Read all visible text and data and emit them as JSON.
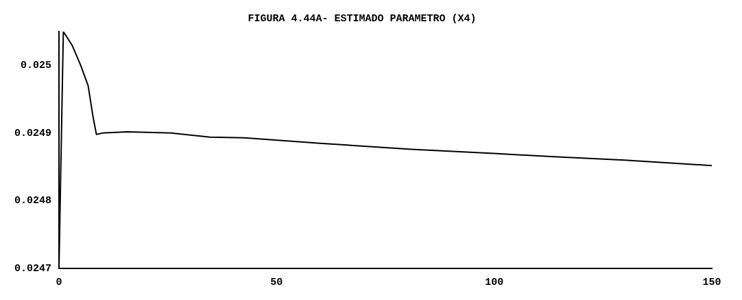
{
  "chart_data": {
    "type": "line",
    "title": "FIGURA 4.44A- ESTIMADO PARAMETRO (X4)",
    "x": [
      0,
      1,
      3,
      5,
      6.7,
      7.8,
      8.6,
      10,
      15.7,
      26,
      34.7,
      42.6,
      60,
      81,
      100,
      113.6,
      130,
      150
    ],
    "series": [
      {
        "color": "#000000",
        "values": [
          0.0247,
          0.02505,
          0.02503,
          0.025,
          0.02497,
          0.024925,
          0.024898,
          0.0249,
          0.024902,
          0.0249,
          0.024894,
          0.024893,
          0.024885,
          0.024876,
          0.02487,
          0.024865,
          0.02486,
          0.024852
        ]
      }
    ],
    "xlim": [
      0,
      150
    ],
    "xticks": [
      0,
      50,
      100,
      150
    ],
    "ylim": [
      0.0247,
      0.02505
    ],
    "yticks": [
      0.0247,
      0.0248,
      0.0249,
      0.025
    ],
    "grid": false,
    "legend": false,
    "marker": "none",
    "line_style": "solid"
  }
}
